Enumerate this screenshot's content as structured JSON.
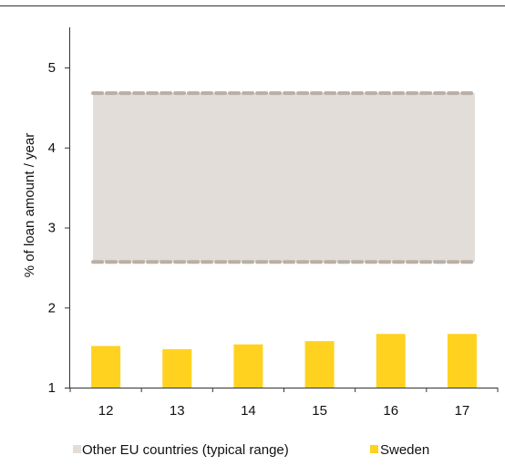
{
  "chart_data": {
    "type": "bar",
    "title": "",
    "ylabel": "% of loan amount / year",
    "xlabel": "",
    "categories": [
      "12",
      "13",
      "14",
      "15",
      "16",
      "17"
    ],
    "ylim": [
      1,
      5.5
    ],
    "y_ticks": [
      1,
      2,
      3,
      4,
      5
    ],
    "series": [
      {
        "name": "Sweden",
        "values": [
          1.52,
          1.48,
          1.54,
          1.58,
          1.67,
          1.67
        ],
        "color": "#FFD21F"
      }
    ],
    "range_band": {
      "name": "Other EU countries (typical range)",
      "low": 2.57,
      "high": 4.68,
      "fill": "#E2DDD8",
      "line_color": "#B9AFA6"
    },
    "legend_position": "bottom",
    "grid": false
  },
  "colors": {
    "axis": "#333333",
    "top_rule": "#333333"
  }
}
